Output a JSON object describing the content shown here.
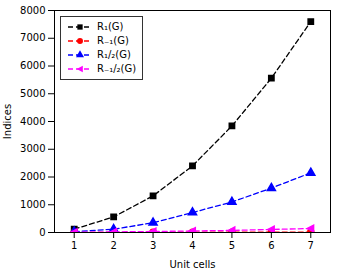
{
  "chart_data": {
    "type": "line",
    "xlabel": "Unit cells",
    "ylabel": "Indices",
    "x": [
      1,
      2,
      3,
      4,
      5,
      6,
      7
    ],
    "series": [
      {
        "name": "R₁(G)",
        "color": "black",
        "marker": "square",
        "line_style": "dashed",
        "values": [
          120,
          560,
          1320,
          2400,
          3840,
          5560,
          7600
        ]
      },
      {
        "name": "R₋₁(G)",
        "color": "red",
        "marker": "circle",
        "line_style": "dashed",
        "values": [
          3.5,
          6.5,
          8.5,
          10.0,
          11.5,
          13.0,
          14.5
        ]
      },
      {
        "name": "R₁/₂(G)",
        "color": "blue",
        "marker": "triangle-up",
        "line_style": "dashed",
        "values": [
          30,
          120,
          350,
          720,
          1100,
          1600,
          2150
        ]
      },
      {
        "name": "R₋₁/₂(G)",
        "color": "magenta",
        "marker": "triangle-left",
        "line_style": "dashed",
        "values": [
          8,
          20,
          38,
          55,
          75,
          110,
          145
        ]
      }
    ],
    "xlim": [
      0.5,
      7.5
    ],
    "ylim": [
      0,
      8000
    ],
    "xticks": [
      1,
      2,
      3,
      4,
      5,
      6,
      7
    ],
    "yticks": [
      0,
      1000,
      2000,
      3000,
      4000,
      5000,
      6000,
      7000,
      8000
    ],
    "legend": "upper left",
    "grid": false
  }
}
